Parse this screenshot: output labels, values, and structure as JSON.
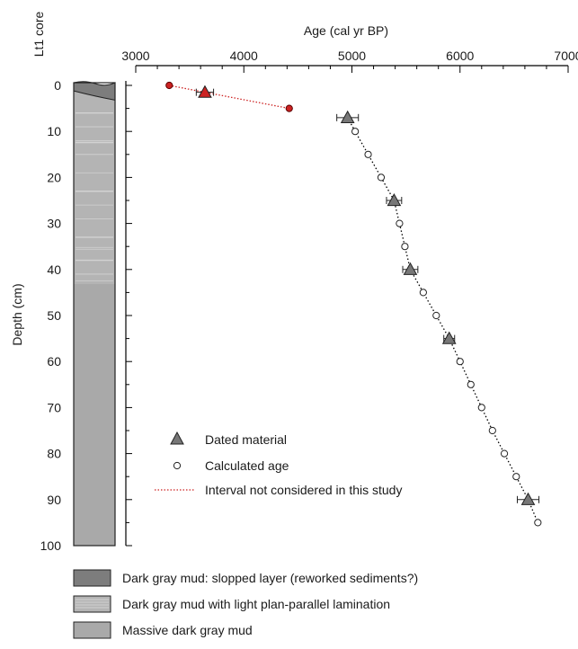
{
  "chart_data": {
    "type": "scatter",
    "title": "",
    "xlabel": "Age (cal yr BP)",
    "ylabel": "Depth (cm)",
    "core_label": "Lt1 core",
    "xlim": [
      3000,
      7000
    ],
    "ylim": [
      0,
      100
    ],
    "y_inverted": true,
    "x_ticks": [
      "3000",
      "4000",
      "5000",
      "6000",
      "7000"
    ],
    "y_ticks": [
      "0",
      "10",
      "20",
      "30",
      "40",
      "50",
      "60",
      "70",
      "80",
      "90",
      "100"
    ],
    "series": [
      {
        "name": "Dated material",
        "marker": "triangle",
        "color": "#777777",
        "points": [
          {
            "x": 4960,
            "y": 7,
            "err": 100
          },
          {
            "x": 5390,
            "y": 25,
            "err": 70
          },
          {
            "x": 5540,
            "y": 40,
            "err": 70
          },
          {
            "x": 5900,
            "y": 55,
            "err": 50
          },
          {
            "x": 6630,
            "y": 90,
            "err": 100
          }
        ]
      },
      {
        "name": "Calculated age",
        "marker": "circle",
        "color": "#ffffff",
        "points": [
          {
            "x": 5030,
            "y": 10
          },
          {
            "x": 5150,
            "y": 15
          },
          {
            "x": 5270,
            "y": 20
          },
          {
            "x": 5440,
            "y": 30
          },
          {
            "x": 5490,
            "y": 35
          },
          {
            "x": 5660,
            "y": 45
          },
          {
            "x": 5780,
            "y": 50
          },
          {
            "x": 6000,
            "y": 60
          },
          {
            "x": 6100,
            "y": 65
          },
          {
            "x": 6200,
            "y": 70
          },
          {
            "x": 6300,
            "y": 75
          },
          {
            "x": 6410,
            "y": 80
          },
          {
            "x": 6520,
            "y": 85
          },
          {
            "x": 6720,
            "y": 95
          }
        ]
      },
      {
        "name": "Interval not considered in this study",
        "marker": "dotted-line",
        "color": "#cc2222",
        "dated_points": [
          {
            "x": 3640,
            "y": 1.5,
            "err": 80
          }
        ],
        "calculated_points": [
          {
            "x": 3310,
            "y": 0
          },
          {
            "x": 4420,
            "y": 5
          }
        ]
      }
    ],
    "age_model_line": {
      "color": "#000000",
      "points": [
        {
          "x": 4960,
          "y": 7
        },
        {
          "x": 5030,
          "y": 10
        },
        {
          "x": 5150,
          "y": 15
        },
        {
          "x": 5270,
          "y": 20
        },
        {
          "x": 5390,
          "y": 25
        },
        {
          "x": 5440,
          "y": 30
        },
        {
          "x": 5490,
          "y": 35
        },
        {
          "x": 5540,
          "y": 40
        },
        {
          "x": 5660,
          "y": 45
        },
        {
          "x": 5780,
          "y": 50
        },
        {
          "x": 5900,
          "y": 55
        },
        {
          "x": 6000,
          "y": 60
        },
        {
          "x": 6100,
          "y": 65
        },
        {
          "x": 6200,
          "y": 70
        },
        {
          "x": 6300,
          "y": 75
        },
        {
          "x": 6410,
          "y": 80
        },
        {
          "x": 6520,
          "y": 85
        },
        {
          "x": 6630,
          "y": 90
        },
        {
          "x": 6720,
          "y": 95
        }
      ]
    },
    "core_units": [
      {
        "label": "Dark gray mud: slopped layer (reworked sediments?)",
        "color": "#7d7d7d",
        "top": 0,
        "bottom": 3
      },
      {
        "label": "Dark gray mud with light plan-parallel lamination",
        "color": "#b4b4b4",
        "top": 3,
        "bottom": 43
      },
      {
        "label": "Massive dark gray mud",
        "color": "#a9a9a9",
        "top": 43,
        "bottom": 100
      }
    ],
    "legend_placement": "bottom-left",
    "grid": false
  }
}
